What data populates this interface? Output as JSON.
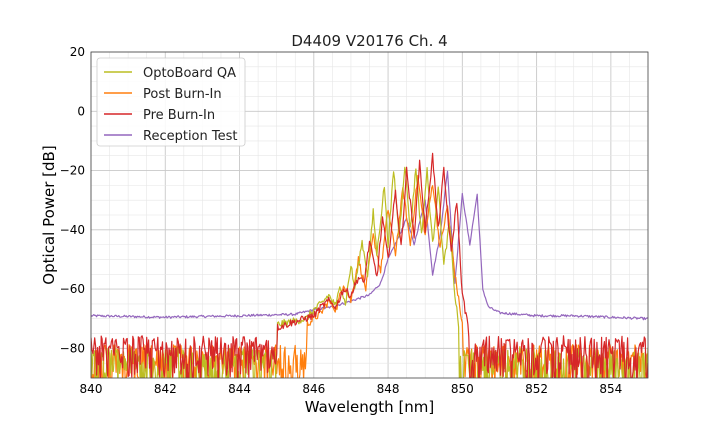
{
  "chart_data": {
    "type": "line",
    "title": "D4409 V20176 Ch. 4",
    "xlabel": "Wavelength [nm]",
    "ylabel": "Optical Power [dB]",
    "xlim": [
      840,
      855
    ],
    "ylim": [
      -90,
      20
    ],
    "x_ticks": [
      "840",
      "842",
      "844",
      "846",
      "848",
      "850",
      "852",
      "854"
    ],
    "y_ticks": [
      "20",
      "0",
      "−20",
      "−40",
      "−60",
      "−80"
    ],
    "grid": true,
    "legend_position": "top-left",
    "series": [
      {
        "name": "OptoBoard QA",
        "color": "#bcbd22",
        "noise_floor": -84,
        "x": [
          845.0,
          845.8,
          846.0,
          846.2,
          846.4,
          846.6,
          846.7,
          846.85,
          847.0,
          847.1,
          847.3,
          847.45,
          847.6,
          847.7,
          847.9,
          848.0,
          848.15,
          848.3,
          848.45,
          848.6,
          848.75,
          848.9,
          849.05,
          849.2,
          849.35,
          849.5,
          849.65,
          849.8,
          849.9
        ],
        "y": [
          -72,
          -70,
          -67,
          -65,
          -62,
          -66,
          -58,
          -65,
          -52,
          -60,
          -44,
          -55,
          -34,
          -48,
          -25,
          -45,
          -20,
          -42,
          -18,
          -40,
          -19,
          -42,
          -20,
          -45,
          -25,
          -52,
          -38,
          -62,
          -72
        ]
      },
      {
        "name": "Post Burn-In",
        "color": "#ff7f0e",
        "noise_floor": -83,
        "x": [
          845.8,
          846.2,
          846.4,
          846.6,
          846.8,
          847.0,
          847.2,
          847.4,
          847.6,
          847.8,
          848.0,
          848.2,
          848.4,
          848.6,
          848.8,
          849.0,
          849.2,
          849.4,
          849.6,
          849.8,
          850.0
        ],
        "y": [
          -72,
          -68,
          -64,
          -67,
          -58,
          -64,
          -50,
          -60,
          -42,
          -54,
          -33,
          -48,
          -26,
          -45,
          -22,
          -42,
          -24,
          -46,
          -32,
          -55,
          -72
        ]
      },
      {
        "name": "Pre Burn-In",
        "color": "#d62728",
        "noise_floor": -80,
        "x": [
          845.0,
          846.0,
          846.2,
          846.4,
          846.6,
          846.8,
          847.0,
          847.2,
          847.35,
          847.5,
          847.7,
          847.85,
          848.0,
          848.2,
          848.35,
          848.5,
          848.7,
          848.85,
          849.0,
          849.2,
          849.35,
          849.5,
          849.7,
          849.85,
          850.0,
          850.15
        ],
        "y": [
          -73,
          -69,
          -66,
          -64,
          -66,
          -60,
          -62,
          -56,
          -58,
          -44,
          -56,
          -36,
          -50,
          -27,
          -46,
          -20,
          -42,
          -17,
          -40,
          -15,
          -40,
          -20,
          -48,
          -30,
          -62,
          -72
        ]
      },
      {
        "name": "Reception Test",
        "color": "#9467bd",
        "noise_floor": -69,
        "x": [
          840.0,
          842.0,
          844.0,
          845.5,
          846.0,
          846.5,
          847.0,
          847.5,
          847.8,
          848.0,
          848.3,
          848.5,
          848.7,
          849.0,
          849.2,
          849.4,
          849.6,
          849.8,
          850.0,
          850.2,
          850.4,
          850.55,
          850.7,
          851.0,
          852.0,
          853.0,
          854.0,
          855.0
        ],
        "y": [
          -69,
          -69.5,
          -69,
          -68.5,
          -67,
          -66,
          -64,
          -62,
          -58,
          -50,
          -42,
          -36,
          -45,
          -30,
          -55,
          -42,
          -20,
          -58,
          -28,
          -45,
          -28,
          -60,
          -66,
          -68,
          -69,
          -69,
          -69.5,
          -70
        ]
      }
    ]
  }
}
